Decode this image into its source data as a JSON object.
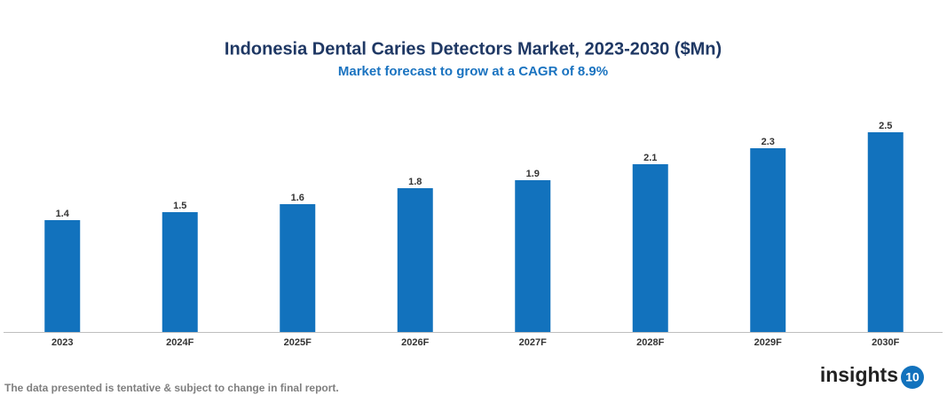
{
  "chart_data": {
    "type": "bar",
    "title": "Indonesia Dental Caries Detectors Market, 2023-2030 ($Mn)",
    "subtitle": "Market forecast to grow at a CAGR of 8.9%",
    "categories": [
      "2023",
      "2024F",
      "2025F",
      "2026F",
      "2027F",
      "2028F",
      "2029F",
      "2030F"
    ],
    "values": [
      1.4,
      1.5,
      1.6,
      1.8,
      1.9,
      2.1,
      2.3,
      2.5
    ],
    "color": "#1272bd",
    "ylim": [
      0,
      2.8
    ]
  },
  "footnote": "The data presented is tentative & subject to change in final report.",
  "logo": {
    "text": "insights",
    "badge": "10"
  }
}
